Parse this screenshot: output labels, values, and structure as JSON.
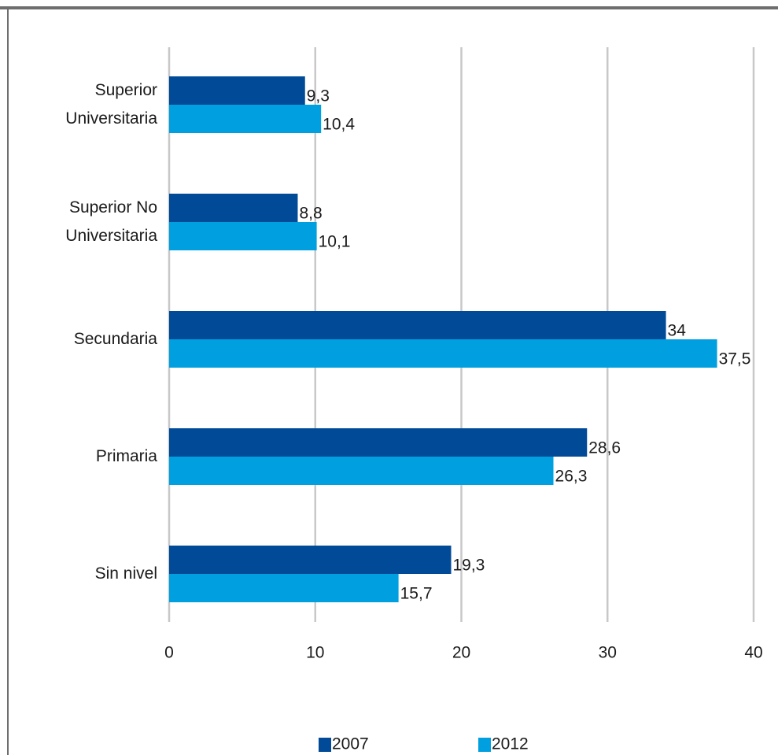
{
  "chart_data": {
    "type": "bar",
    "orientation": "horizontal",
    "categories": [
      "Superior\nUniversitaria",
      "Superior  No\nUniversitaria",
      "Secundaria",
      "Primaria",
      "Sin nivel"
    ],
    "series": [
      {
        "name": "2007",
        "color": "#004a97",
        "values": [
          9.3,
          8.8,
          34,
          28.6,
          19.3
        ],
        "value_labels": [
          "9,3",
          "8,8",
          "34",
          "28,6",
          "19,3"
        ]
      },
      {
        "name": "2012",
        "color": "#00a0e0",
        "values": [
          10.4,
          10.1,
          37.5,
          26.3,
          15.7
        ],
        "value_labels": [
          "10,4",
          "10,1",
          "37,5",
          "26,3",
          "15,7"
        ]
      }
    ],
    "xlim": [
      0,
      40
    ],
    "xticks": [
      0,
      10,
      20,
      30,
      40
    ],
    "grid": true,
    "legend": "bottom"
  }
}
